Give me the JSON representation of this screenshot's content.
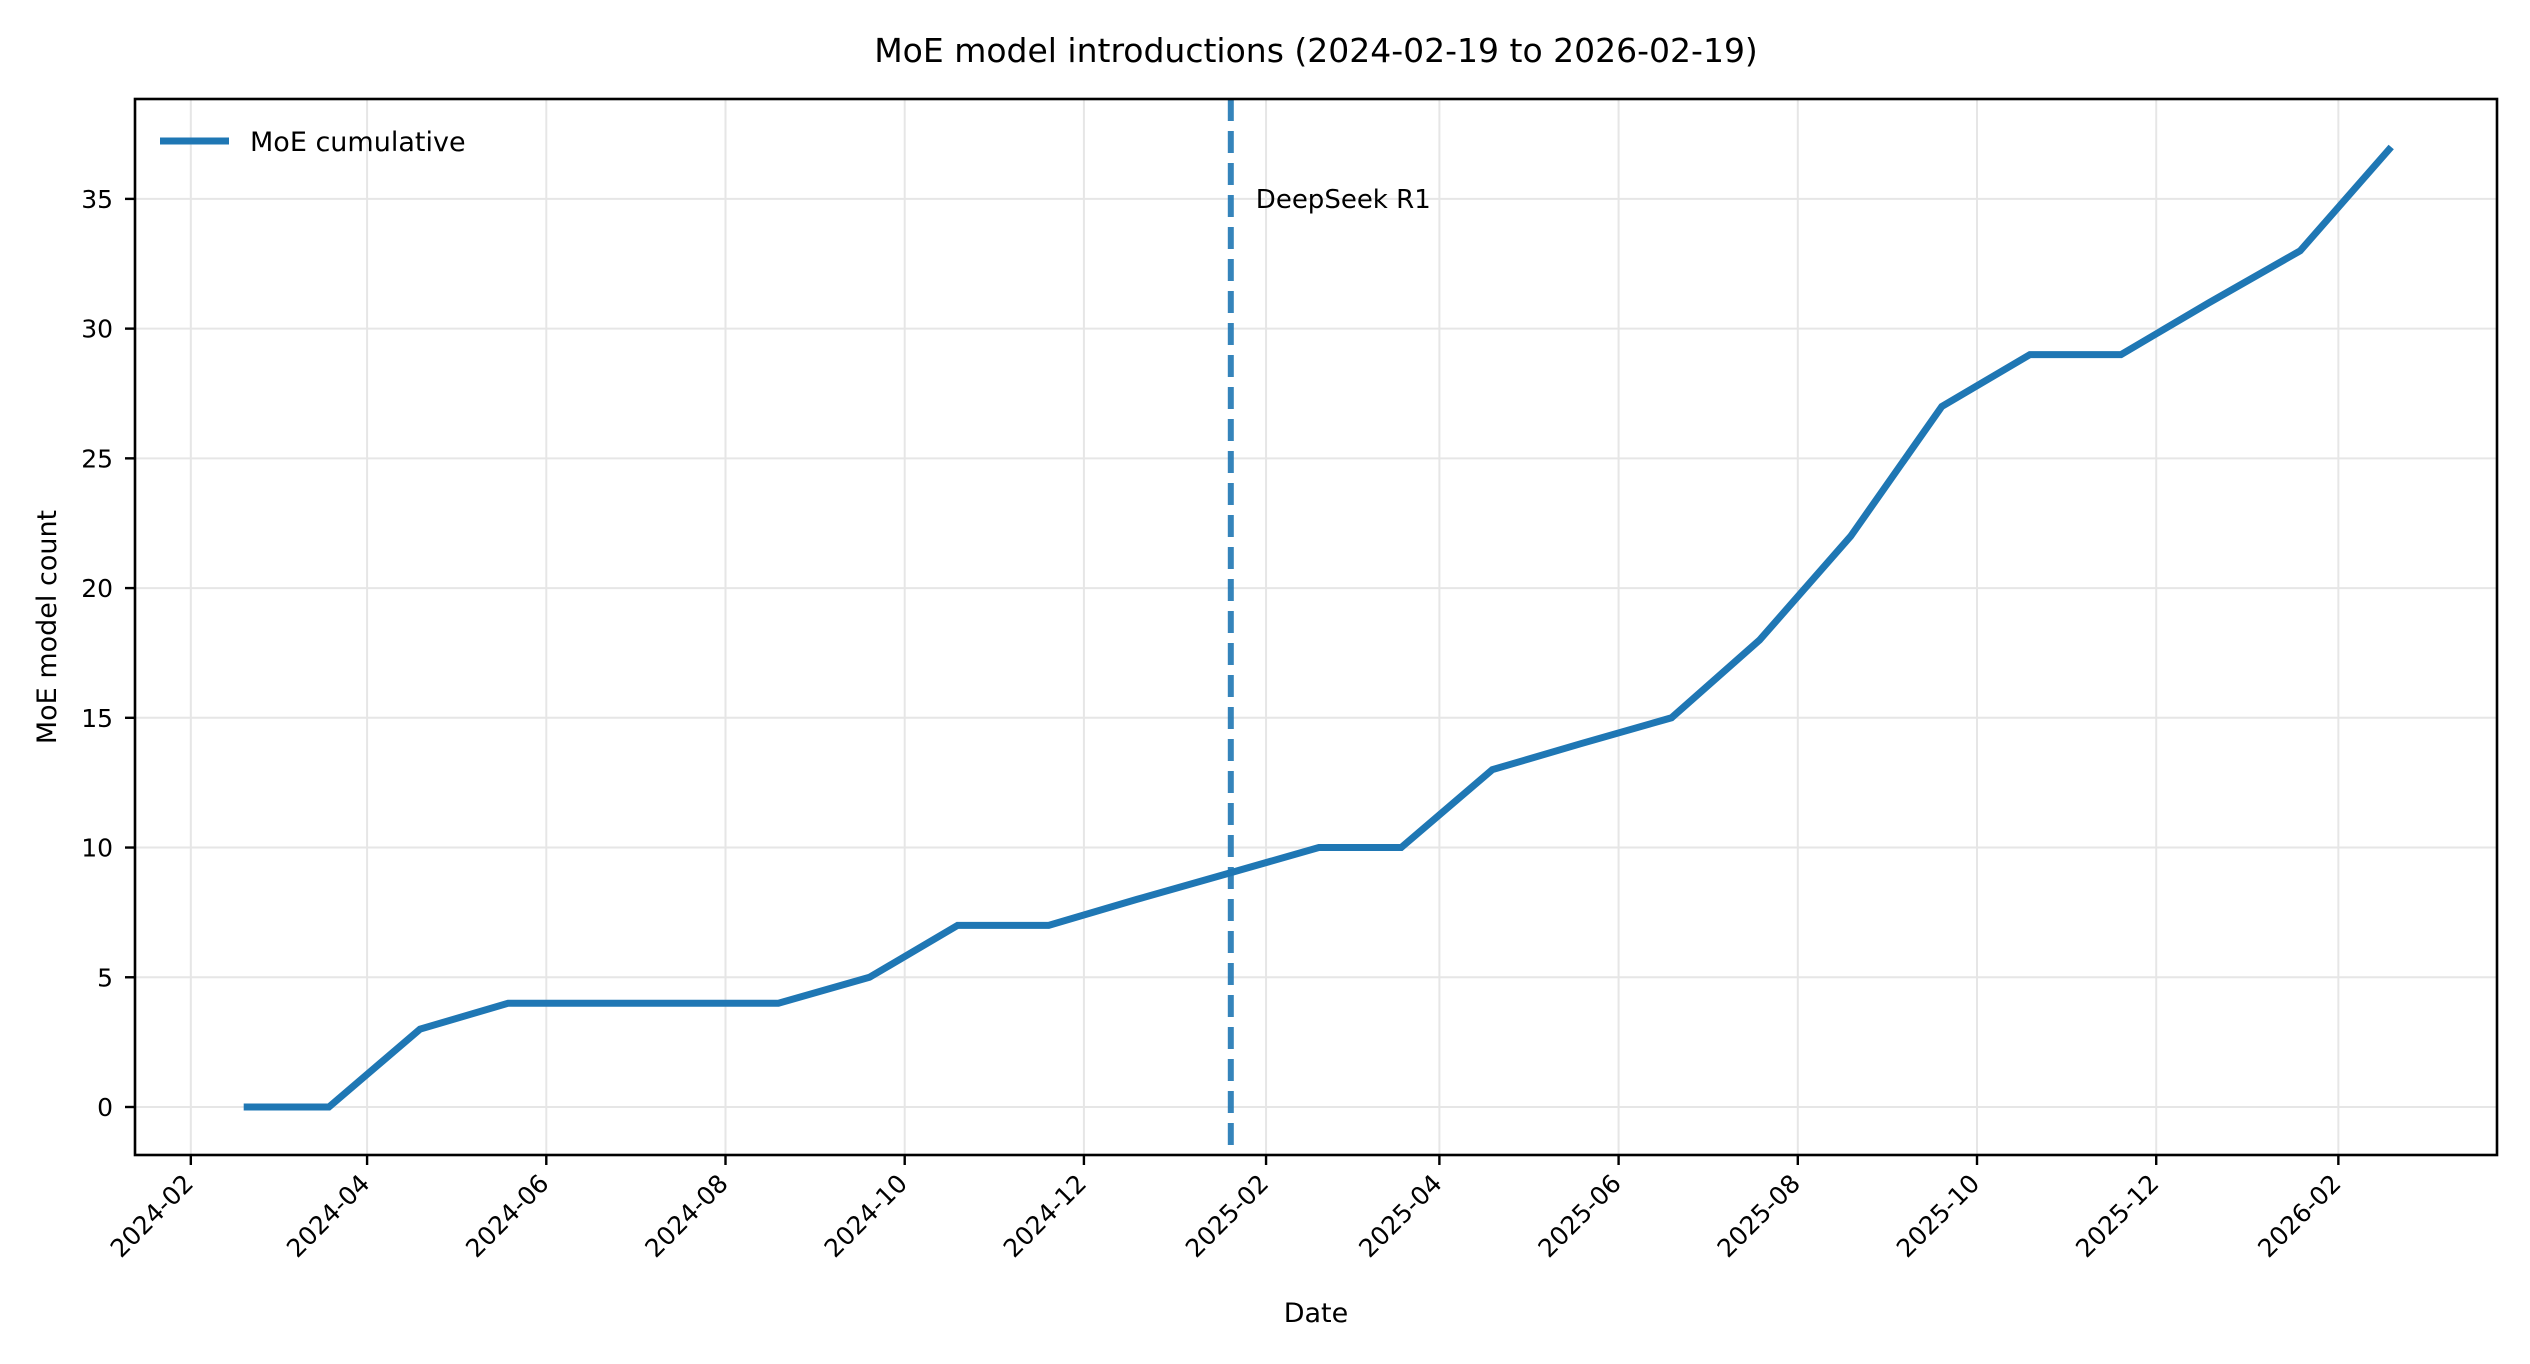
{
  "chart_data": {
    "type": "line",
    "title": "MoE model introductions (2024-02-19 to 2026-02-19)",
    "xlabel": "Date",
    "ylabel": "MoE model count",
    "x_type": "date",
    "xlim": [
      "2024-01-13",
      "2026-03-27"
    ],
    "ylim": [
      -1.85,
      38.85
    ],
    "grid": true,
    "legend": {
      "placement": "top-left",
      "entries": [
        "MoE cumulative"
      ]
    },
    "xticks": [
      "2024-02",
      "2024-04",
      "2024-06",
      "2024-08",
      "2024-10",
      "2024-12",
      "2025-02",
      "2025-04",
      "2025-06",
      "2025-08",
      "2025-10",
      "2025-12",
      "2026-02"
    ],
    "xtick_dates": [
      "2024-02-01",
      "2024-04-01",
      "2024-06-01",
      "2024-08-01",
      "2024-10-01",
      "2024-12-01",
      "2025-02-01",
      "2025-04-01",
      "2025-06-01",
      "2025-08-01",
      "2025-10-01",
      "2025-12-01",
      "2026-02-01"
    ],
    "yticks": [
      0,
      5,
      10,
      15,
      20,
      25,
      30,
      35
    ],
    "series": [
      {
        "name": "MoE cumulative",
        "color": "#1f77b4",
        "x": [
          "2024-02-19",
          "2024-03-19",
          "2024-04-19",
          "2024-05-19",
          "2024-06-19",
          "2024-07-19",
          "2024-08-19",
          "2024-09-19",
          "2024-10-19",
          "2024-11-19",
          "2024-12-19",
          "2025-01-19",
          "2025-02-19",
          "2025-03-19",
          "2025-04-19",
          "2025-05-19",
          "2025-06-19",
          "2025-07-19",
          "2025-08-19",
          "2025-09-19",
          "2025-10-19",
          "2025-11-19",
          "2025-12-19",
          "2026-01-19",
          "2026-02-19"
        ],
        "values": [
          0,
          0,
          3,
          4,
          4,
          4,
          4,
          5,
          7,
          7,
          8,
          9,
          10,
          10,
          13,
          14,
          15,
          18,
          22,
          27,
          29,
          29,
          31,
          33,
          37
        ]
      }
    ],
    "annotations": [
      {
        "type": "vline",
        "x": "2025-01-20",
        "style": "dashed",
        "color": "#1f77b4",
        "label": "DeepSeek R1",
        "label_y": 35
      }
    ]
  }
}
